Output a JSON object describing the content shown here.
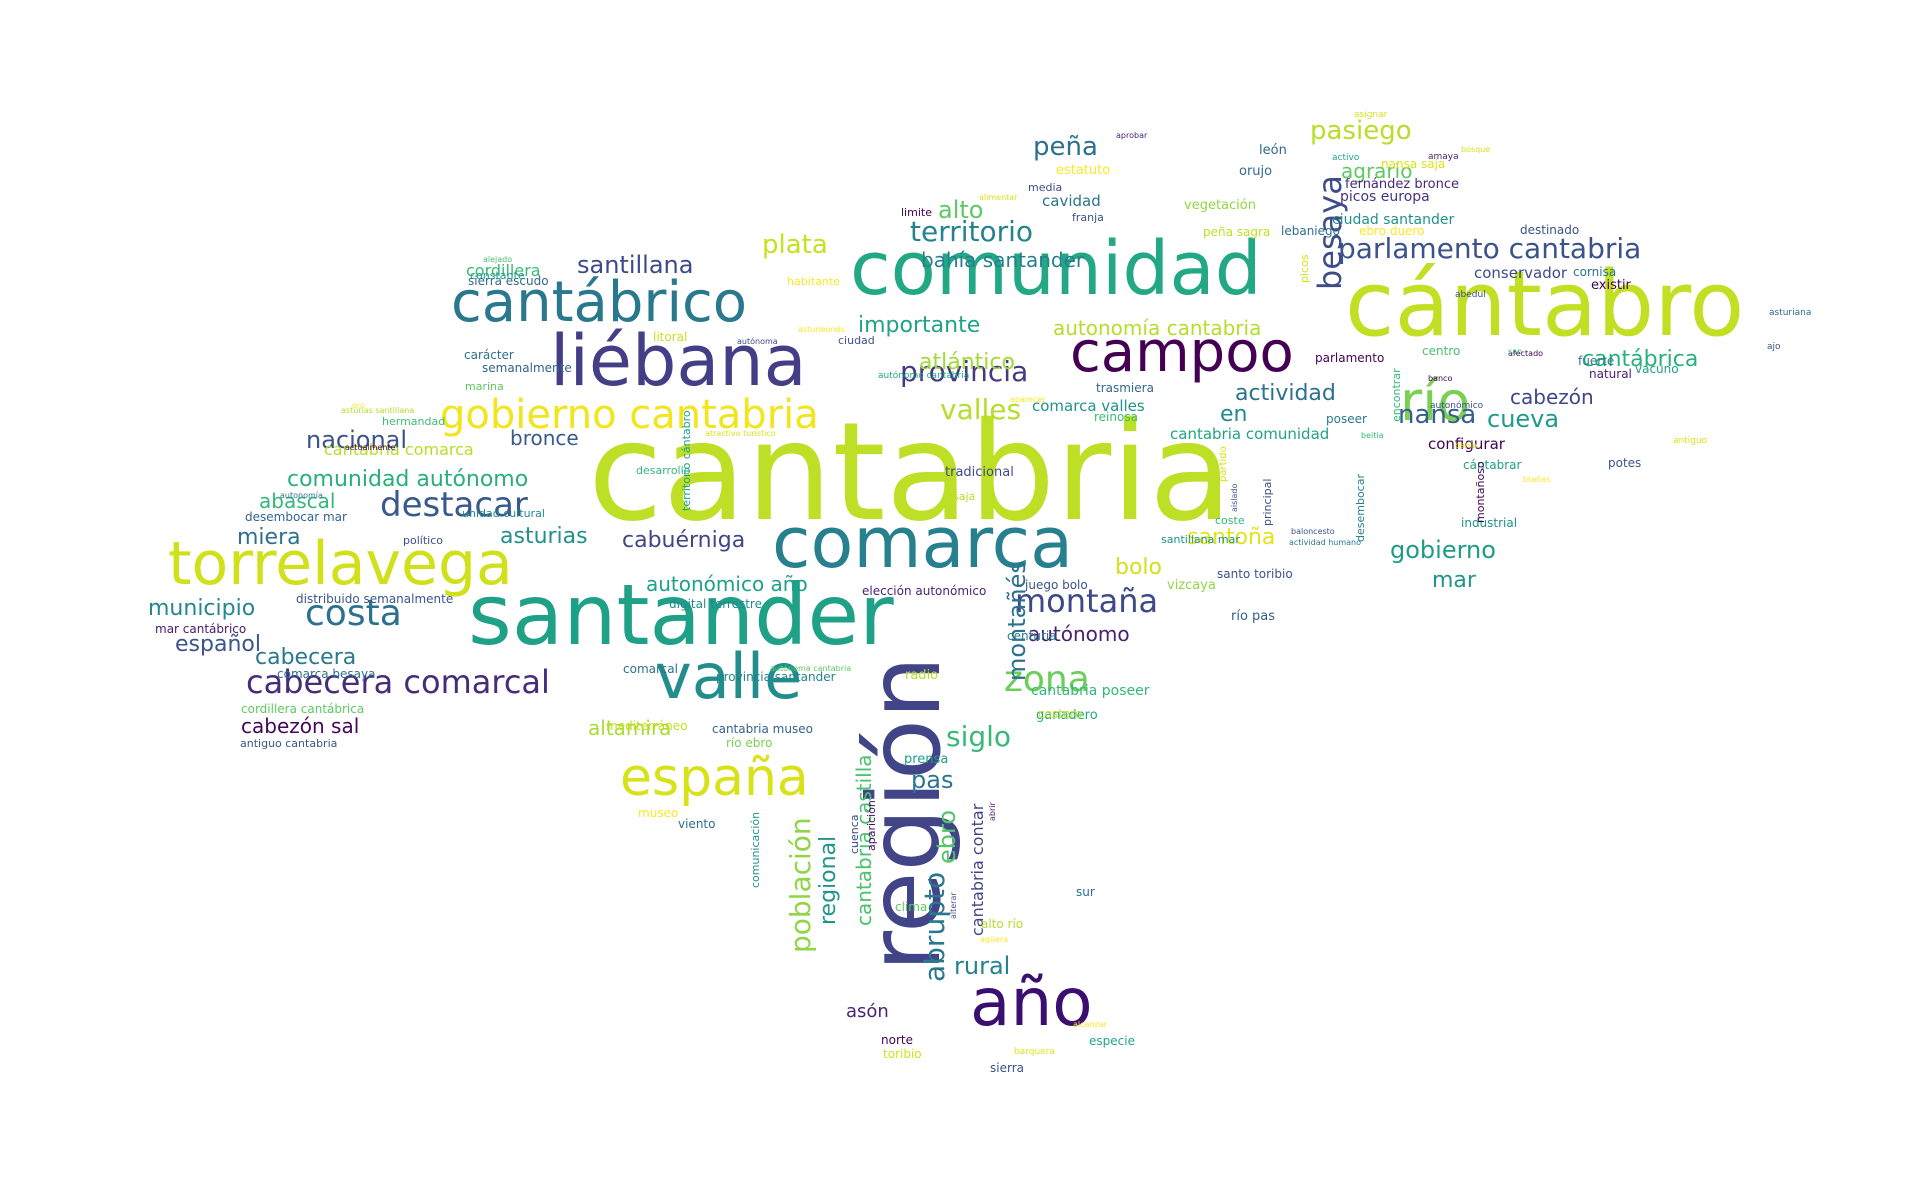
{
  "background": "#ffffff",
  "palette": [
    "#440154",
    "#482878",
    "#3e4a89",
    "#31688e",
    "#26828e",
    "#1f9e89",
    "#35b779",
    "#6ece58",
    "#b5de2b",
    "#fde725"
  ],
  "words": [
    {
      "text": "cantabria",
      "color": "#bddf26"
    },
    {
      "text": "santander",
      "color": "#1fa187"
    },
    {
      "text": "comunidad",
      "color": "#22a884"
    },
    {
      "text": "cántabro",
      "color": "#c2df23"
    },
    {
      "text": "comarca",
      "color": "#27808e"
    },
    {
      "text": "liébana",
      "color": "#433e85"
    },
    {
      "text": "torrelavega",
      "color": "#d0e11c"
    },
    {
      "text": "cantábrico",
      "color": "#2a788e"
    },
    {
      "text": "campoo",
      "color": "#440154"
    },
    {
      "text": "valle",
      "color": "#228d8d"
    },
    {
      "text": "región",
      "color": "#414487"
    },
    {
      "text": "año",
      "color": "#3b0f70"
    },
    {
      "text": "españa",
      "color": "#d8e219"
    },
    {
      "text": "río",
      "color": "#7ad151"
    },
    {
      "text": "gobierno cantabria",
      "color": "#f1e51d"
    },
    {
      "text": "destacar",
      "color": "#38598c"
    },
    {
      "text": "cabecera comarcal",
      "color": "#472c7a"
    },
    {
      "text": "montaña",
      "color": "#3e4989"
    },
    {
      "text": "zona",
      "color": "#6ccd5a"
    },
    {
      "text": "costa",
      "color": "#2c718e"
    },
    {
      "text": "parlamento cantabria",
      "color": "#3b528b"
    },
    {
      "text": "provincia",
      "color": "#443983"
    },
    {
      "text": "territorio",
      "color": "#25838e"
    },
    {
      "text": "besaya",
      "color": "#3e4c8a"
    },
    {
      "text": "pasiego",
      "color": "#b8de29"
    },
    {
      "text": "plata",
      "color": "#c8e020"
    },
    {
      "text": "santillana",
      "color": "#3e4989"
    },
    {
      "text": "peña",
      "color": "#2d708e"
    },
    {
      "text": "alto",
      "color": "#5ec962"
    },
    {
      "text": "importante",
      "color": "#20a386"
    },
    {
      "text": "autonomía cantabria",
      "color": "#b5de2b"
    },
    {
      "text": "bahía santander",
      "color": "#277f8e"
    },
    {
      "text": "valles",
      "color": "#b5de2b"
    },
    {
      "text": "atlántico",
      "color": "#a2da37"
    },
    {
      "text": "actividad",
      "color": "#2c728e"
    },
    {
      "text": "cantábrica",
      "color": "#2ab07f"
    },
    {
      "text": "nansa",
      "color": "#355f8d"
    },
    {
      "text": "cueva",
      "color": "#1e9b8a"
    },
    {
      "text": "cabezón",
      "color": "#3f4788"
    },
    {
      "text": "agrario",
      "color": "#5ec962"
    },
    {
      "text": "en",
      "color": "#23898e"
    },
    {
      "text": "nacional",
      "color": "#3b528b"
    },
    {
      "text": "bronce",
      "color": "#38598c"
    },
    {
      "text": "comunidad autónomo",
      "color": "#29af7f"
    },
    {
      "text": "asturias",
      "color": "#21918c"
    },
    {
      "text": "miera",
      "color": "#2c728e"
    },
    {
      "text": "abascal",
      "color": "#35b779"
    },
    {
      "text": "cabuérniga",
      "color": "#404688"
    },
    {
      "text": "santoña",
      "color": "#e2e418"
    },
    {
      "text": "bolo",
      "color": "#d2e21b"
    },
    {
      "text": "gobierno",
      "color": "#1e9c89"
    },
    {
      "text": "mar",
      "color": "#1f958b"
    },
    {
      "text": "municipio",
      "color": "#24878e"
    },
    {
      "text": "autonómico año",
      "color": "#1fa088"
    },
    {
      "text": "autónomo",
      "color": "#482071"
    },
    {
      "text": "español",
      "color": "#3a548c"
    },
    {
      "text": "cabecera",
      "color": "#29798e"
    },
    {
      "text": "siglo",
      "color": "#38b977"
    },
    {
      "text": "montañés",
      "color": "#2c728e"
    },
    {
      "text": "altamira",
      "color": "#a8db34"
    },
    {
      "text": "pas",
      "color": "#2a768e"
    },
    {
      "text": "cabezón sal",
      "color": "#450559"
    },
    {
      "text": "población",
      "color": "#8ed645"
    },
    {
      "text": "regional",
      "color": "#1f968b"
    },
    {
      "text": "abrupto",
      "color": "#2a788e"
    },
    {
      "text": "ebro",
      "color": "#52c569"
    },
    {
      "text": "rural",
      "color": "#26828e"
    },
    {
      "text": "asón",
      "color": "#482576"
    },
    {
      "text": "cantabria castilla",
      "color": "#4ac16d"
    },
    {
      "text": "cantabria contar",
      "color": "#414487"
    },
    {
      "text": "cantabria comarca",
      "color": "#b5de2b"
    },
    {
      "text": "cordillera",
      "color": "#3aba76"
    },
    {
      "text": "ciudad santander",
      "color": "#20928c"
    },
    {
      "text": "configurar",
      "color": "#440154"
    },
    {
      "text": "cavidad",
      "color": "#2b748e"
    },
    {
      "text": "comarca valles",
      "color": "#21918c"
    },
    {
      "text": "cantabria comunidad",
      "color": "#20a386"
    },
    {
      "text": "cantabria poseer",
      "color": "#35b779"
    },
    {
      "text": "conservador",
      "color": "#3e4a89"
    },
    {
      "text": "picos europa",
      "color": "#46337e"
    },
    {
      "text": "fernández bronce",
      "color": "#482878"
    },
    {
      "text": "nansa saja",
      "color": "#dde318"
    },
    {
      "text": "estatuto",
      "color": "#fde725"
    },
    {
      "text": "león",
      "color": "#31688e"
    },
    {
      "text": "orujo",
      "color": "#2e6e8e"
    },
    {
      "text": "vegetación",
      "color": "#90d743"
    },
    {
      "text": "lebaniego",
      "color": "#2e6f8e"
    },
    {
      "text": "peña sagra",
      "color": "#c2df23"
    },
    {
      "text": "ebro duero",
      "color": "#fde725"
    },
    {
      "text": "destinado",
      "color": "#3b528b"
    },
    {
      "text": "existir",
      "color": "#440154"
    },
    {
      "text": "cornisa",
      "color": "#2c728e"
    },
    {
      "text": "fuerte",
      "color": "#2a788e"
    },
    {
      "text": "vacuno",
      "color": "#1f9e89"
    },
    {
      "text": "natural",
      "color": "#482173"
    },
    {
      "text": "centro",
      "color": "#4ac16d"
    },
    {
      "text": "parlamento",
      "color": "#440154"
    },
    {
      "text": "reinosa",
      "color": "#3dbc74"
    },
    {
      "text": "trasmiera",
      "color": "#31688e"
    },
    {
      "text": "poseer",
      "color": "#2a788e"
    },
    {
      "text": "potes",
      "color": "#3b528b"
    },
    {
      "text": "cántabrar",
      "color": "#1fa088"
    },
    {
      "text": "industrial",
      "color": "#21918c"
    },
    {
      "text": "tradicional",
      "color": "#3e4c8a"
    },
    {
      "text": "vizcaya",
      "color": "#8fd744"
    },
    {
      "text": "río pas",
      "color": "#355e8d"
    },
    {
      "text": "santo toribio",
      "color": "#3b528b"
    },
    {
      "text": "centuria",
      "color": "#2a778e"
    },
    {
      "text": "radio",
      "color": "#b8de29"
    },
    {
      "text": "ganadero",
      "color": "#23a983"
    },
    {
      "text": "costero",
      "color": "#c2df23"
    },
    {
      "text": "juego bolo",
      "color": "#3b528b"
    },
    {
      "text": "elección autonómico",
      "color": "#482475"
    },
    {
      "text": "digital terrestre",
      "color": "#23888e"
    },
    {
      "text": "prensa",
      "color": "#1fa188"
    },
    {
      "text": "alto río",
      "color": "#b5de2b"
    },
    {
      "text": "sur",
      "color": "#2e6e8e"
    },
    {
      "text": "especie",
      "color": "#21a685"
    },
    {
      "text": "sierra",
      "color": "#3b528b"
    },
    {
      "text": "norte",
      "color": "#450457"
    },
    {
      "text": "toribio",
      "color": "#d2e21b"
    },
    {
      "text": "viento",
      "color": "#2d708e"
    },
    {
      "text": "museo",
      "color": "#fde725"
    },
    {
      "text": "clima",
      "color": "#5ec962"
    },
    {
      "text": "mediterráneo",
      "color": "#c2df23"
    },
    {
      "text": "cantabria museo",
      "color": "#33638d"
    },
    {
      "text": "río ebro",
      "color": "#7ad151"
    },
    {
      "text": "comarcal",
      "color": "#2d708e"
    },
    {
      "text": "provincia santander",
      "color": "#26828e"
    },
    {
      "text": "cordillera cantábrica",
      "color": "#5ec962"
    },
    {
      "text": "antiguo cantabria",
      "color": "#39568c"
    },
    {
      "text": "comarca besaya",
      "color": "#2e6e8e"
    },
    {
      "text": "mar cantábrico",
      "color": "#481a6c"
    },
    {
      "text": "distribuido semanalmente",
      "color": "#3a548c"
    },
    {
      "text": "político",
      "color": "#3b528b"
    },
    {
      "text": "unidad cultural",
      "color": "#23898e"
    },
    {
      "text": "desembocar mar",
      "color": "#33638d"
    },
    {
      "text": "sierra escudo",
      "color": "#31688e"
    },
    {
      "text": "constante",
      "color": "#1f9e89"
    },
    {
      "text": "carácter",
      "color": "#2c728e"
    },
    {
      "text": "semanalmente",
      "color": "#34618d"
    },
    {
      "text": "marina",
      "color": "#5ec962"
    },
    {
      "text": "hermandad",
      "color": "#3dbc74"
    },
    {
      "text": "desarrollo",
      "color": "#35b779"
    },
    {
      "text": "litoral",
      "color": "#c8e020"
    },
    {
      "text": "ciudad",
      "color": "#3b528b"
    },
    {
      "text": "habitante",
      "color": "#fde725"
    },
    {
      "text": "media",
      "color": "#3e4c8a"
    },
    {
      "text": "franja",
      "color": "#3b528b"
    },
    {
      "text": "limite",
      "color": "#440154"
    },
    {
      "text": "saja",
      "color": "#b8de29"
    },
    {
      "text": "santillana mar",
      "color": "#21918c"
    },
    {
      "text": "coste",
      "color": "#35b779"
    },
    {
      "text": "partido",
      "color": "#d8e219"
    },
    {
      "text": "principal",
      "color": "#3e4a89"
    },
    {
      "text": "desembocar",
      "color": "#26828e"
    },
    {
      "text": "montañoso",
      "color": "#440154"
    },
    {
      "text": "encontrar",
      "color": "#35b779"
    },
    {
      "text": "picos",
      "color": "#d8e219"
    },
    {
      "text": "territorio cántabro",
      "color": "#1f9e89"
    },
    {
      "text": "comunicación",
      "color": "#21918c"
    },
    {
      "text": "cuenca",
      "color": "#3e4a89"
    },
    {
      "text": "aparición",
      "color": "#471063"
    },
    {
      "text": "barquera",
      "color": "#e5e419"
    },
    {
      "text": "alcanzar",
      "color": "#fde725"
    },
    {
      "text": "agüera",
      "color": "#fde725"
    },
    {
      "text": "alterar",
      "color": "#3b528b"
    },
    {
      "text": "abrir",
      "color": "#481668"
    },
    {
      "text": "autónoma cantabria",
      "color": "#5ec962"
    },
    {
      "text": "alejado",
      "color": "#4ac16d"
    },
    {
      "text": "asturias santillana",
      "color": "#b5de2b"
    },
    {
      "text": "autonomía",
      "color": "#2c728e"
    },
    {
      "text": "actualmente",
      "color": "#440154"
    },
    {
      "text": "oro",
      "color": "#fde725"
    },
    {
      "text": "autónoma",
      "color": "#3e4a89"
    },
    {
      "text": "asturleonés",
      "color": "#fde725"
    },
    {
      "text": "autónomo cantabria",
      "color": "#22a884"
    },
    {
      "text": "aparecer",
      "color": "#fde725"
    },
    {
      "text": "atractivo turístico",
      "color": "#d8e219"
    },
    {
      "text": "actividad humano",
      "color": "#2a788e"
    },
    {
      "text": "aislado",
      "color": "#3b528b"
    },
    {
      "text": "baloncesto",
      "color": "#3b528b"
    },
    {
      "text": "beitia",
      "color": "#35b779"
    },
    {
      "text": "autonómico",
      "color": "#3b528b"
    },
    {
      "text": "banco",
      "color": "#440154"
    },
    {
      "text": "brañas",
      "color": "#fde725"
    },
    {
      "text": "bahía",
      "color": "#d8e219"
    },
    {
      "text": "afectado",
      "color": "#440154"
    },
    {
      "text": "antiguo",
      "color": "#d8e219"
    },
    {
      "text": "san",
      "color": "#35b779"
    },
    {
      "text": "ajo",
      "color": "#3b528b"
    },
    {
      "text": "asturiana",
      "color": "#31688e"
    },
    {
      "text": "abedul",
      "color": "#3b528b"
    },
    {
      "text": "activo",
      "color": "#22a884"
    },
    {
      "text": "amaya",
      "color": "#482878"
    },
    {
      "text": "bosque",
      "color": "#d8e219"
    },
    {
      "text": "asignar",
      "color": "#d8e219"
    },
    {
      "text": "aprobar",
      "color": "#482878"
    },
    {
      "text": "alimentar",
      "color": "#d8e219"
    }
  ]
}
